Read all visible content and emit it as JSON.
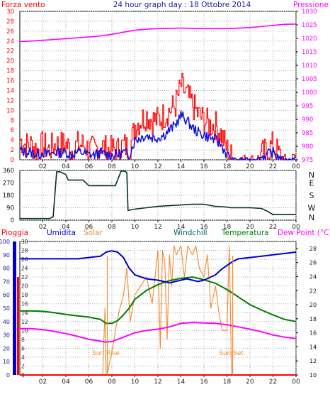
{
  "colors": {
    "background": "#ffffff",
    "frame": "#000000",
    "grid": "#a9a9a9",
    "wind": "#ff0000",
    "gust": "#1010e0",
    "pressure": "#ff00ff",
    "direction": "#003030",
    "rain": "#ff0000",
    "humidity": "#0000cc",
    "solar": "#f08a30",
    "windchill": "#006060",
    "temperature": "#008000",
    "dewpoint": "#ff00ff"
  },
  "chart_data": [
    {
      "id": "wind-pressure",
      "type": "line",
      "title": "24 hour graph day : 18 Ottobre 2014",
      "left_axis_title": "Forza vento",
      "right_axis_title": "Pressione",
      "x_ticks": [
        "02",
        "04",
        "06",
        "08",
        "10",
        "12",
        "14",
        "16",
        "18",
        "20",
        "22",
        "00"
      ],
      "y_left": {
        "min": 0,
        "max": 30,
        "ticks": [
          "0",
          "2",
          "4",
          "6",
          "8",
          "10",
          "12",
          "14",
          "16",
          "18",
          "20",
          "22",
          "24",
          "26",
          "28",
          "30"
        ]
      },
      "y_right": {
        "min": 975,
        "max": 1030,
        "ticks": [
          "975",
          "980",
          "985",
          "990",
          "995",
          "1000",
          "1005",
          "1010",
          "1015",
          "1020",
          "1025",
          "1030"
        ]
      },
      "series": [
        {
          "axis": "left",
          "color_key": "wind",
          "x": [
            0,
            0.5,
            1,
            1.5,
            2,
            2.5,
            3,
            3.5,
            4,
            4.5,
            5,
            5.5,
            6,
            6.5,
            7,
            7.5,
            8,
            8.5,
            9,
            9.5,
            10,
            10.5,
            11,
            11.5,
            12,
            12.5,
            13,
            13.5,
            14,
            14.5,
            15,
            15.5,
            16,
            16.5,
            17,
            17.5,
            18,
            18.5,
            19,
            19.5,
            20,
            20.5,
            21,
            21.5,
            22,
            22.5,
            23,
            23.5,
            24
          ],
          "values": [
            4,
            3,
            3,
            2,
            3,
            2,
            3,
            3,
            3,
            2,
            3,
            3,
            2,
            2,
            3,
            2,
            2,
            2,
            3,
            2,
            7,
            8,
            9,
            8,
            8,
            9,
            10,
            11,
            15,
            13,
            11,
            9,
            8,
            7,
            7,
            5,
            2,
            0,
            0,
            0,
            0,
            0,
            1,
            2,
            3,
            1,
            0,
            0,
            1
          ]
        },
        {
          "axis": "left",
          "color_key": "gust",
          "x": [
            0,
            0.5,
            1,
            1.5,
            2,
            2.5,
            3,
            3.5,
            4,
            4.5,
            5,
            5.5,
            6,
            6.5,
            7,
            7.5,
            8,
            8.5,
            9,
            9.5,
            10,
            10.5,
            11,
            11.5,
            12,
            12.5,
            13,
            13.5,
            14,
            14.5,
            15,
            15.5,
            16,
            16.5,
            17,
            17.5,
            18,
            18.5,
            19,
            19.5,
            20,
            20.5,
            21,
            21.5,
            22,
            22.5,
            23,
            23.5,
            24
          ],
          "values": [
            2,
            1.5,
            1.5,
            1,
            1.5,
            1,
            1.5,
            1.5,
            1.5,
            1,
            1.5,
            1.5,
            1,
            1,
            1.5,
            1,
            1,
            1,
            1.5,
            1,
            4,
            4.5,
            5,
            4.5,
            4.5,
            5,
            6,
            7,
            9,
            8,
            6.5,
            5.5,
            5,
            4.5,
            4,
            3,
            1,
            0,
            0,
            0,
            0,
            0,
            0.5,
            1,
            1.5,
            0.5,
            0,
            0,
            0.5
          ]
        },
        {
          "axis": "right",
          "color_key": "pressure",
          "x": [
            0,
            1,
            2,
            3,
            4,
            5,
            6,
            7,
            8,
            9,
            10,
            11,
            12,
            13,
            14,
            15,
            16,
            17,
            18,
            19,
            20,
            21,
            22,
            23,
            24
          ],
          "values": [
            1018.8,
            1019.0,
            1019.3,
            1019.6,
            1019.9,
            1020.2,
            1020.5,
            1020.9,
            1021.5,
            1022.3,
            1023.0,
            1023.4,
            1023.6,
            1023.7,
            1023.8,
            1023.7,
            1023.6,
            1023.6,
            1023.6,
            1023.8,
            1024.0,
            1024.4,
            1024.8,
            1025.2,
            1025.3
          ]
        }
      ]
    },
    {
      "id": "wind-direction",
      "type": "line",
      "x_ticks": [
        "02",
        "04",
        "06",
        "08",
        "10",
        "12",
        "14",
        "16",
        "18",
        "20",
        "22",
        "00"
      ],
      "y_left": {
        "min": 0,
        "max": 360,
        "ticks": [
          "0",
          "90",
          "180",
          "270",
          "360"
        ]
      },
      "y_right_labels": [
        "N",
        "W",
        "S",
        "E",
        "N"
      ],
      "series": [
        {
          "axis": "left",
          "color_key": "direction",
          "x": [
            0,
            2.6,
            2.9,
            3.2,
            3.5,
            4,
            4.2,
            5.5,
            6,
            7.8,
            8.3,
            8.8,
            9.1,
            9.3,
            9.4,
            10,
            11,
            12,
            13,
            14,
            15,
            16,
            17,
            18,
            18.3,
            19,
            20,
            21,
            21.5,
            22,
            23,
            24
          ],
          "values": [
            12,
            12,
            25,
            350,
            350,
            330,
            290,
            290,
            250,
            250,
            250,
            355,
            355,
            345,
            70,
            80,
            90,
            100,
            105,
            110,
            115,
            115,
            100,
            95,
            90,
            90,
            90,
            85,
            65,
            40,
            40,
            40
          ]
        }
      ]
    },
    {
      "id": "temperature-humidity",
      "type": "line",
      "legend": [
        "Pioggia",
        "Umidita",
        "Solar",
        "Windchill",
        "Temperatura",
        "Dew Point (°C)"
      ],
      "x_ticks": [
        "02",
        "04",
        "06",
        "08",
        "10",
        "12",
        "14",
        "16",
        "18",
        "20",
        "22",
        "00"
      ],
      "y_left_outer": {
        "min": 0,
        "max": 100,
        "ticks": [
          "0",
          "10",
          "20",
          "30",
          "40",
          "50",
          "60",
          "70",
          "80",
          "90",
          "100"
        ]
      },
      "y_left_inner": {
        "min": 0,
        "max": 30,
        "ticks": [
          "0",
          "2",
          "4",
          "6",
          "8",
          "10",
          "12",
          "14",
          "16",
          "18",
          "20",
          "22",
          "24",
          "26",
          "28",
          "30"
        ]
      },
      "y_right": {
        "min": 10,
        "max": 29,
        "ticks": [
          "10",
          "12",
          "14",
          "16",
          "18",
          "20",
          "22",
          "24",
          "26",
          "28"
        ]
      },
      "annotations": [
        "Sun Rise",
        "Sun Set"
      ],
      "series": [
        {
          "name": "Pioggia",
          "axis": "left_inner",
          "color_key": "rain",
          "x": [
            0,
            24
          ],
          "values": [
            0,
            0
          ]
        },
        {
          "name": "Umidita",
          "axis": "left_outer",
          "color_key": "humidity",
          "x": [
            0,
            1,
            2,
            3,
            4,
            5,
            6,
            7,
            7.5,
            8,
            8.5,
            9,
            9.5,
            10,
            11,
            12,
            12.5,
            13,
            13.5,
            14,
            14.5,
            15,
            15.5,
            16,
            17,
            17.5,
            18,
            18.5,
            19,
            20,
            21,
            22,
            23,
            24
          ],
          "values": [
            87,
            87,
            87,
            87,
            87,
            87,
            88,
            89,
            92,
            93,
            92,
            88,
            80,
            75,
            72,
            71,
            70,
            69,
            70,
            71,
            72,
            71,
            70,
            71,
            75,
            79,
            82,
            85,
            87,
            88,
            89,
            90,
            91,
            92
          ]
        },
        {
          "name": "Solar",
          "axis": "left_inner",
          "color_key": "solar",
          "x": [
            0,
            7.2,
            7.4,
            7.5,
            7.6,
            7.8,
            8,
            8.3,
            8.6,
            9,
            9.3,
            9.6,
            10,
            10.5,
            11,
            11.5,
            12,
            12.2,
            12.4,
            12.6,
            12.8,
            13,
            13.2,
            13.4,
            13.6,
            13.8,
            14,
            14.3,
            14.6,
            15,
            15.3,
            15.6,
            16,
            16.3,
            16.6,
            17,
            17.3,
            17.6,
            18,
            18.2,
            18.4,
            18.5,
            18.6,
            24
          ],
          "values": [
            0,
            0,
            15,
            0,
            0,
            3,
            5,
            10,
            14,
            18,
            24,
            12,
            18,
            20,
            22,
            16,
            28,
            6,
            28,
            25,
            8,
            27,
            20,
            29,
            27,
            28,
            29,
            22,
            29,
            27,
            29,
            24,
            22,
            27,
            15,
            20,
            14,
            10,
            10,
            29,
            0,
            0,
            0,
            0
          ]
        },
        {
          "name": "Windchill",
          "axis": "left_inner",
          "color_key": "windchill",
          "x": [
            0,
            1,
            2,
            3,
            4,
            5,
            6,
            7,
            7.5,
            8,
            8.5,
            9,
            9.5,
            10,
            11,
            12,
            13,
            14,
            15,
            16,
            17,
            18,
            19,
            20,
            21,
            22,
            23,
            24
          ],
          "values": [
            14.4,
            14.4,
            14.3,
            14.0,
            13.6,
            13.3,
            13.0,
            12.5,
            11.6,
            11.6,
            12.2,
            13.5,
            15,
            17,
            19,
            20.3,
            21.2,
            21.7,
            22.0,
            21.4,
            20.6,
            19.2,
            17.5,
            15.8,
            14.6,
            13.5,
            12.5,
            12.0
          ]
        },
        {
          "name": "Temperatura",
          "axis": "left_inner",
          "color_key": "temperature",
          "x": [
            0,
            1,
            2,
            3,
            4,
            5,
            6,
            7,
            7.5,
            8,
            8.5,
            9,
            9.5,
            10,
            11,
            12,
            13,
            14,
            15,
            16,
            17,
            18,
            19,
            20,
            21,
            22,
            23,
            24
          ],
          "values": [
            14.4,
            14.4,
            14.3,
            14.0,
            13.6,
            13.3,
            13.0,
            12.5,
            11.6,
            11.6,
            12.2,
            13.5,
            15,
            17,
            19,
            20.3,
            21.2,
            21.7,
            22.0,
            21.4,
            20.6,
            19.2,
            17.5,
            15.8,
            14.6,
            13.5,
            12.5,
            12.0
          ]
        },
        {
          "name": "Dew Point (°C)",
          "axis": "left_inner",
          "color_key": "dewpoint",
          "x": [
            0,
            1,
            2,
            3,
            4,
            5,
            6,
            7,
            7.5,
            8,
            8.5,
            9,
            9.5,
            10,
            11,
            12,
            13,
            14,
            15,
            16,
            17,
            18,
            19,
            20,
            21,
            22,
            23,
            24
          ],
          "values": [
            10.4,
            10.4,
            10.2,
            9.8,
            9.3,
            8.7,
            8.0,
            7.6,
            7.4,
            7.5,
            8.0,
            8.5,
            9.0,
            9.5,
            10.0,
            10.3,
            10.8,
            11.6,
            11.8,
            11.7,
            11.6,
            11.3,
            10.8,
            10.3,
            9.7,
            9.0,
            8.5,
            8.2
          ]
        }
      ]
    }
  ]
}
